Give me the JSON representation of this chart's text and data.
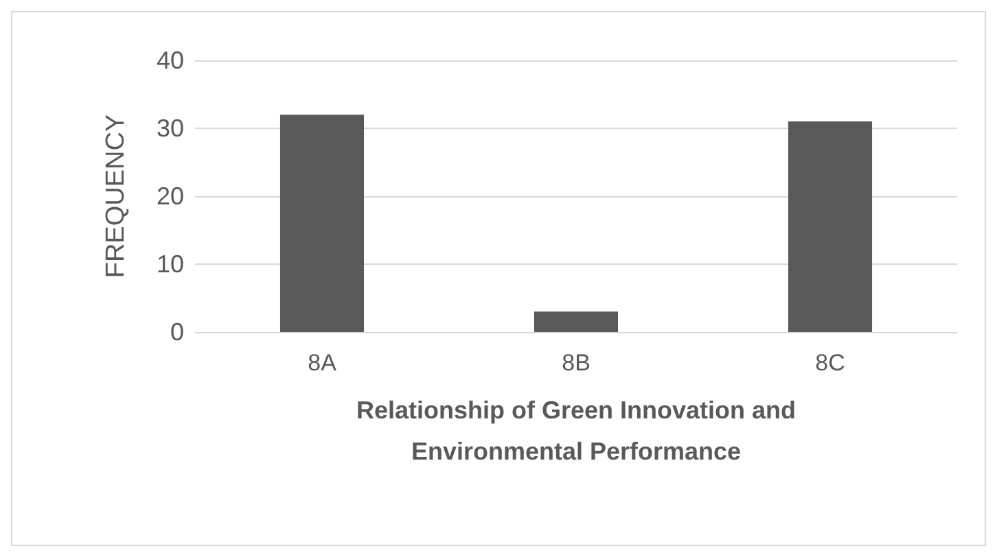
{
  "chart_data": {
    "type": "bar",
    "xlabel": "Relationship of Green Innovation and\nEnvironmental Performance",
    "ylabel": "FREQUENCY",
    "categories": [
      "8A",
      "8B",
      "8C"
    ],
    "values": [
      32,
      3,
      31
    ],
    "color": "#595959",
    "ylim": [
      0,
      40
    ],
    "yticks": [
      0,
      10,
      20,
      30,
      40
    ],
    "grid": "y"
  }
}
